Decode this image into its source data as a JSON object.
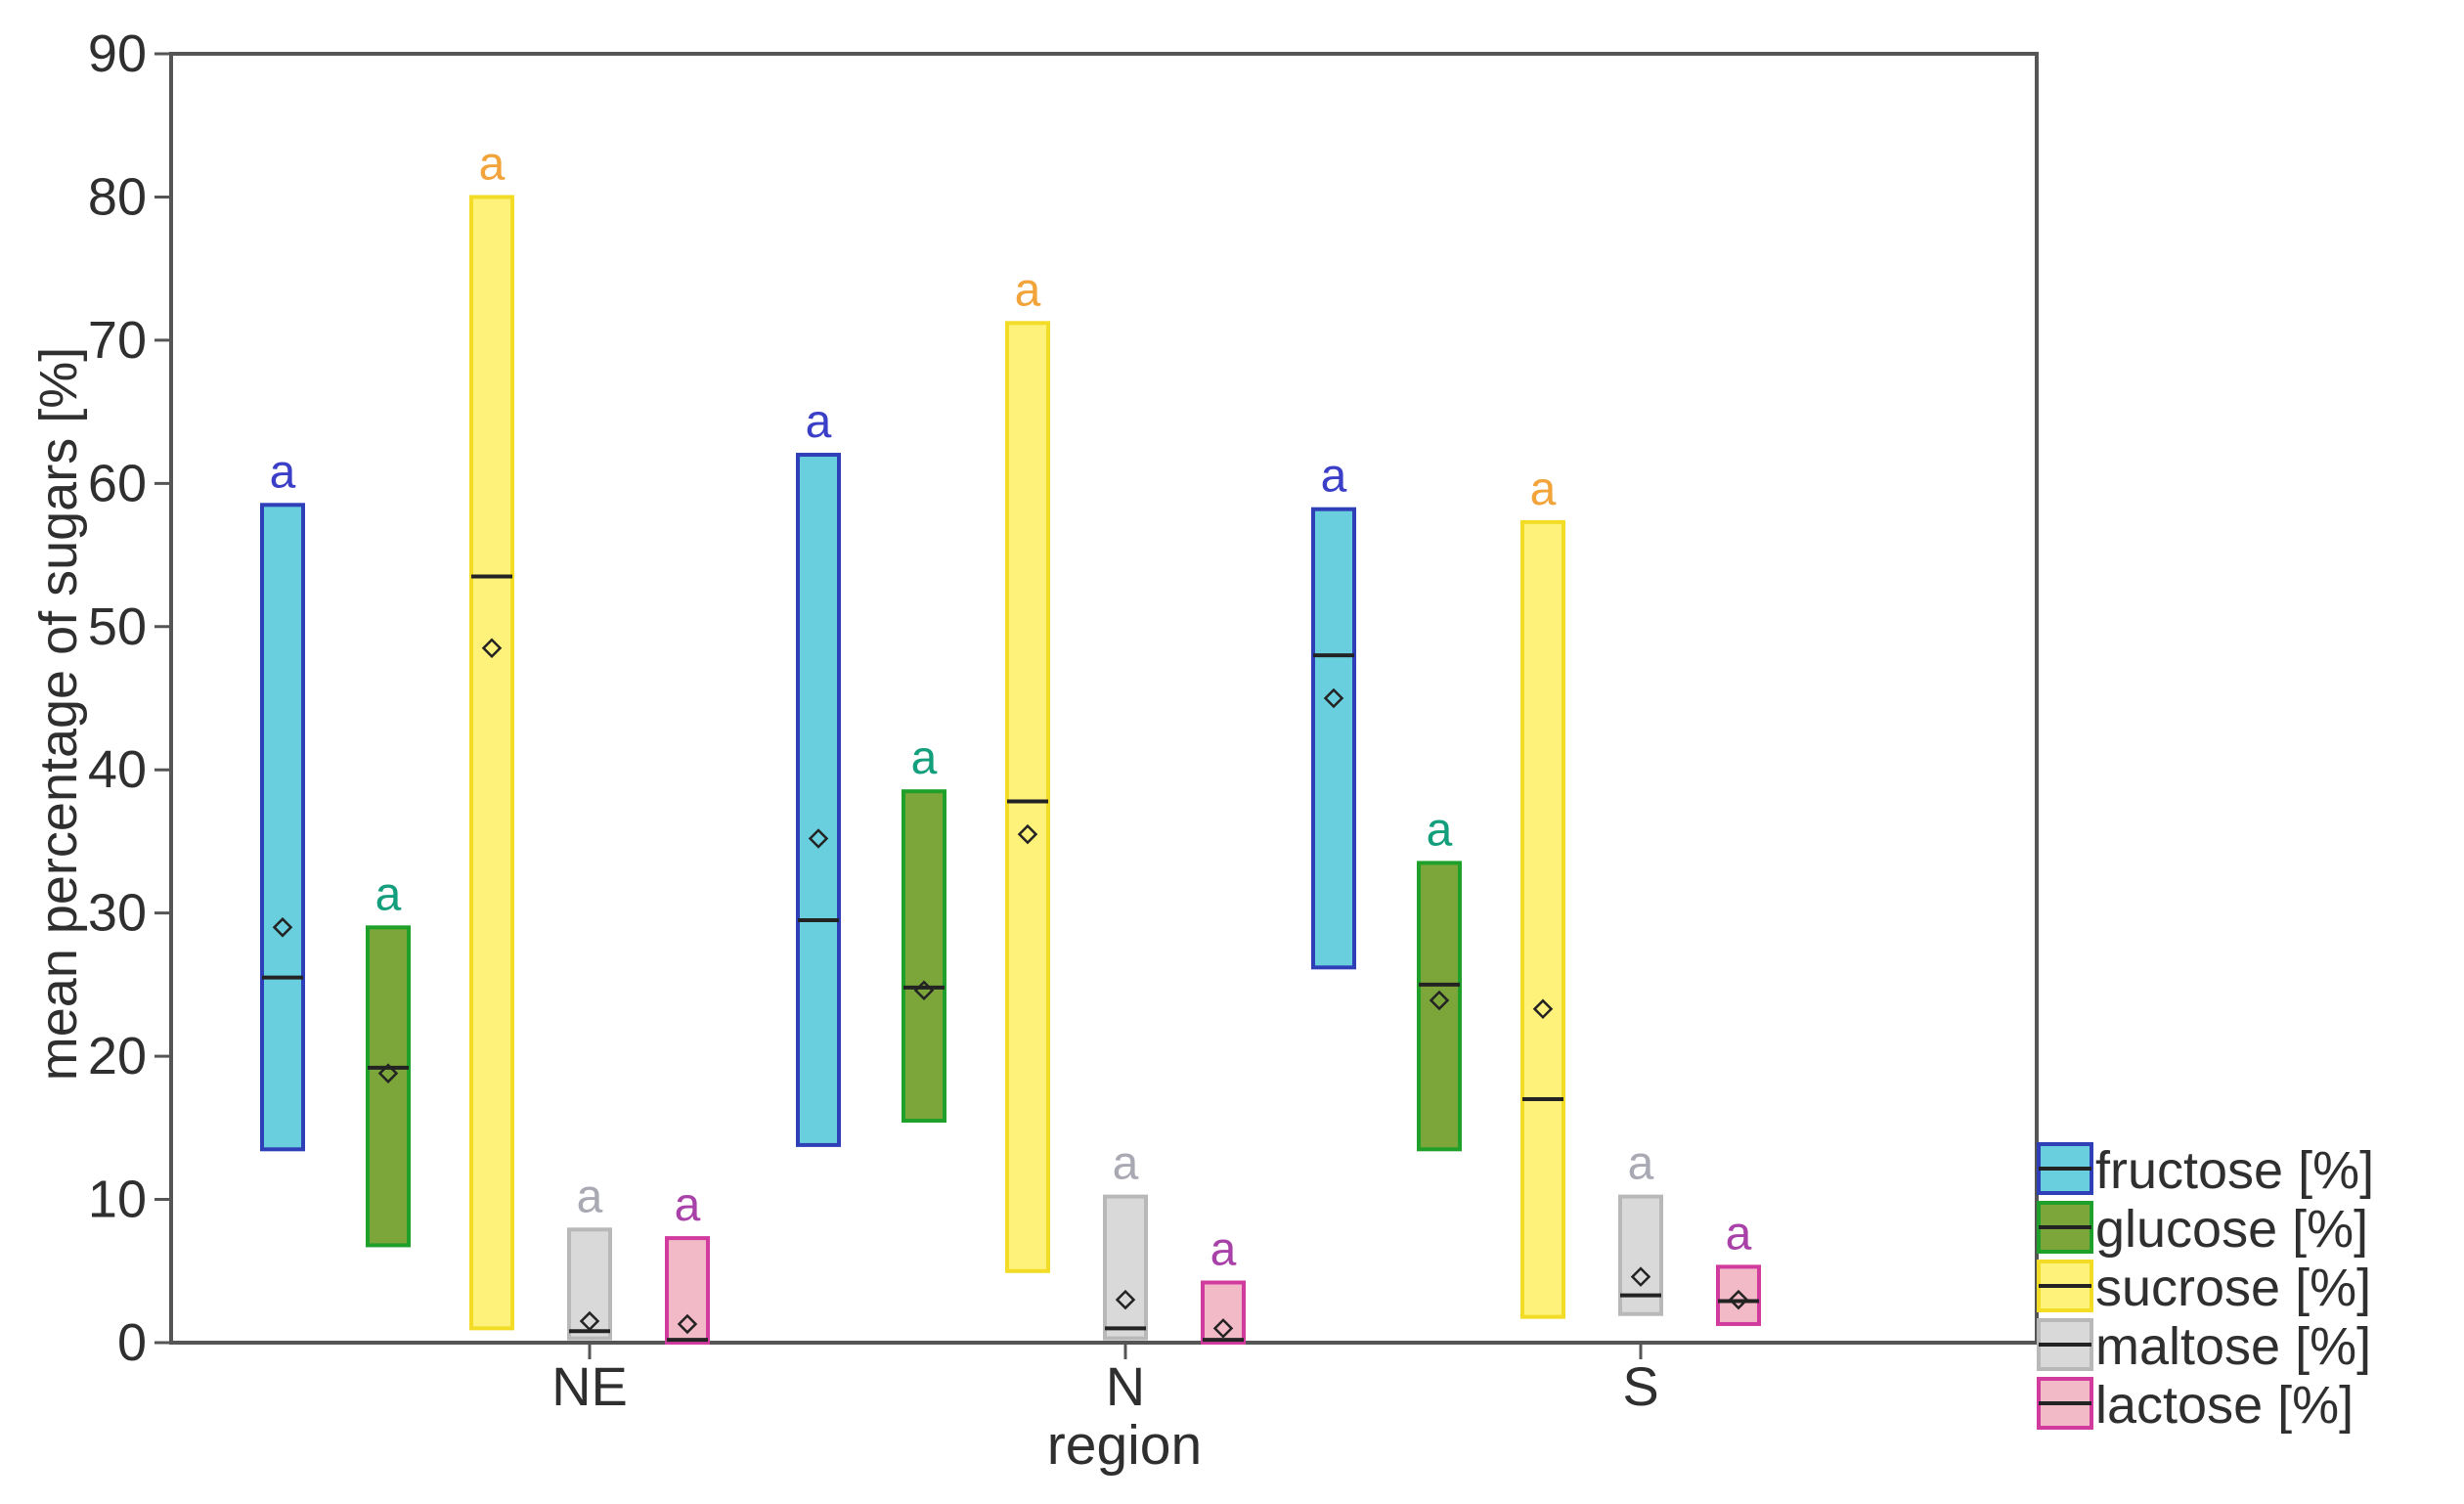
{
  "chart_data": {
    "type": "boxplot",
    "title": "",
    "xlabel": "region",
    "ylabel": "mean percentage of sugars [%]",
    "ylim": [
      0,
      90
    ],
    "yticks": [
      0,
      10,
      20,
      30,
      40,
      50,
      60,
      70,
      80,
      90
    ],
    "ytick_labels": [
      "0",
      "10",
      "20",
      "30",
      "40",
      "50",
      "60",
      "70",
      "80",
      "90"
    ],
    "categories": [
      "NE",
      "N",
      "S"
    ],
    "legend_position": "bottom-right",
    "series": [
      {
        "name": "fructose [%]",
        "fill": "#69CFDE",
        "stroke": "#2E3FB8",
        "label_color": "#3B3FC7",
        "boxes": [
          {
            "low": 13.5,
            "high": 58.5,
            "median": 25.5,
            "mean": 29.0,
            "letter": "a"
          },
          {
            "low": 13.8,
            "high": 62.0,
            "median": 29.5,
            "mean": 35.2,
            "letter": "a"
          },
          {
            "low": 26.2,
            "high": 58.2,
            "median": 48.0,
            "mean": 45.0,
            "letter": "a"
          }
        ]
      },
      {
        "name": "glucose [%]",
        "fill": "#7CA63A",
        "stroke": "#1FA02A",
        "label_color": "#139E7C",
        "boxes": [
          {
            "low": 6.8,
            "high": 29.0,
            "median": 19.2,
            "mean": 18.8,
            "letter": "a"
          },
          {
            "low": 15.5,
            "high": 38.5,
            "median": 24.8,
            "mean": 24.6,
            "letter": "a"
          },
          {
            "low": 13.5,
            "high": 33.5,
            "median": 25.0,
            "mean": 23.9,
            "letter": "a"
          }
        ]
      },
      {
        "name": "sucrose [%]",
        "fill": "#FFF27A",
        "stroke": "#F2DC26",
        "label_color": "#F2A33A",
        "boxes": [
          {
            "low": 1.0,
            "high": 80.0,
            "median": 53.5,
            "mean": 48.5,
            "letter": "a"
          },
          {
            "low": 5.0,
            "high": 71.2,
            "median": 37.8,
            "mean": 35.5,
            "letter": "a"
          },
          {
            "low": 1.8,
            "high": 57.3,
            "median": 17.0,
            "mean": 23.3,
            "letter": "a"
          }
        ]
      },
      {
        "name": "maltose [%]",
        "fill": "#D9D9D9",
        "stroke": "#B8B8B8",
        "label_color": "#A9A9B4",
        "boxes": [
          {
            "low": 0.3,
            "high": 7.9,
            "median": 0.8,
            "mean": 1.5,
            "letter": "a"
          },
          {
            "low": 0.3,
            "high": 10.2,
            "median": 1.0,
            "mean": 3.0,
            "letter": "a"
          },
          {
            "low": 2.0,
            "high": 10.2,
            "median": 3.3,
            "mean": 4.6,
            "letter": "a"
          }
        ]
      },
      {
        "name": "lactose [%]",
        "fill": "#F2B9C6",
        "stroke": "#D13B9D",
        "label_color": "#A842A8",
        "boxes": [
          {
            "low": 0.0,
            "high": 7.3,
            "median": 0.2,
            "mean": 1.3,
            "letter": "a"
          },
          {
            "low": 0.0,
            "high": 4.2,
            "median": 0.2,
            "mean": 1.0,
            "letter": "a"
          },
          {
            "low": 1.3,
            "high": 5.3,
            "median": 2.9,
            "mean": 3.0,
            "letter": "a"
          }
        ]
      }
    ]
  }
}
